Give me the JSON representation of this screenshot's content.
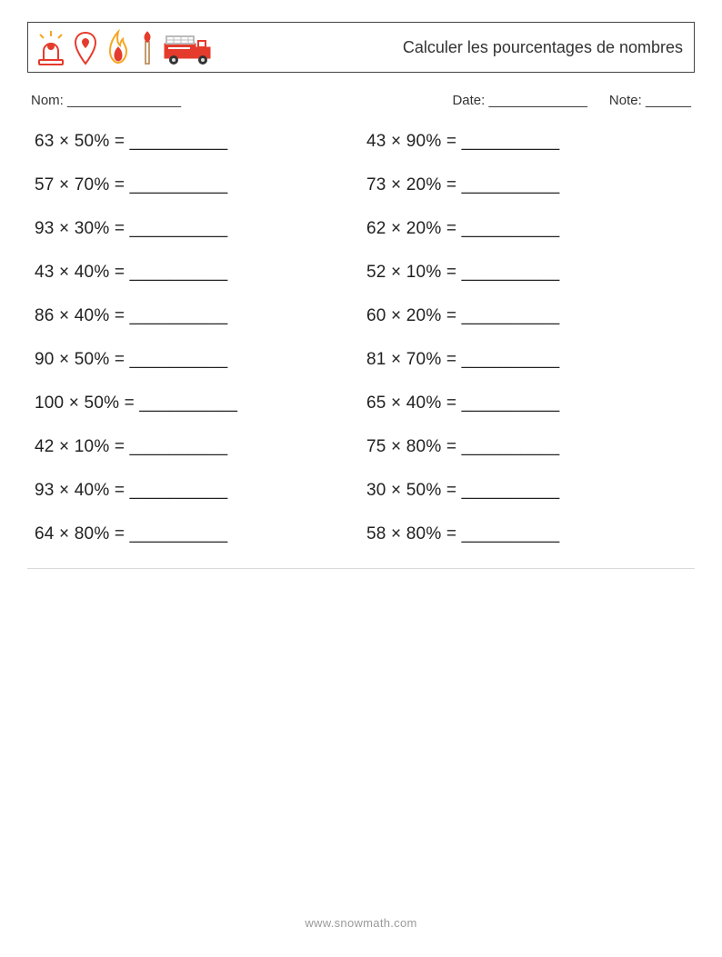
{
  "header": {
    "title": "Calculer les pourcentages de nombres",
    "icon_color_red": "#e53b2c",
    "icon_color_orange": "#f5a623",
    "icon_color_dark": "#7a3b1a"
  },
  "meta": {
    "name_label": "Nom: _______________",
    "date_label": "Date: _____________",
    "note_label": "Note: ______"
  },
  "worksheet": {
    "type": "two-column-list",
    "columns": 2,
    "font_size_pt": 14,
    "text_color": "#222222",
    "blank": "__________",
    "mult_symbol": "×",
    "rows": [
      {
        "left_a": 63,
        "left_b": "50%",
        "right_a": 43,
        "right_b": "90%"
      },
      {
        "left_a": 57,
        "left_b": "70%",
        "right_a": 73,
        "right_b": "20%"
      },
      {
        "left_a": 93,
        "left_b": "30%",
        "right_a": 62,
        "right_b": "20%"
      },
      {
        "left_a": 43,
        "left_b": "40%",
        "right_a": 52,
        "right_b": "10%"
      },
      {
        "left_a": 86,
        "left_b": "40%",
        "right_a": 60,
        "right_b": "20%"
      },
      {
        "left_a": 90,
        "left_b": "50%",
        "right_a": 81,
        "right_b": "70%"
      },
      {
        "left_a": 100,
        "left_b": "50%",
        "right_a": 65,
        "right_b": "40%"
      },
      {
        "left_a": 42,
        "left_b": "10%",
        "right_a": 75,
        "right_b": "80%"
      },
      {
        "left_a": 93,
        "left_b": "40%",
        "right_a": 30,
        "right_b": "50%"
      },
      {
        "left_a": 64,
        "left_b": "80%",
        "right_a": 58,
        "right_b": "80%"
      }
    ]
  },
  "footer": {
    "url": "www.snowmath.com"
  }
}
